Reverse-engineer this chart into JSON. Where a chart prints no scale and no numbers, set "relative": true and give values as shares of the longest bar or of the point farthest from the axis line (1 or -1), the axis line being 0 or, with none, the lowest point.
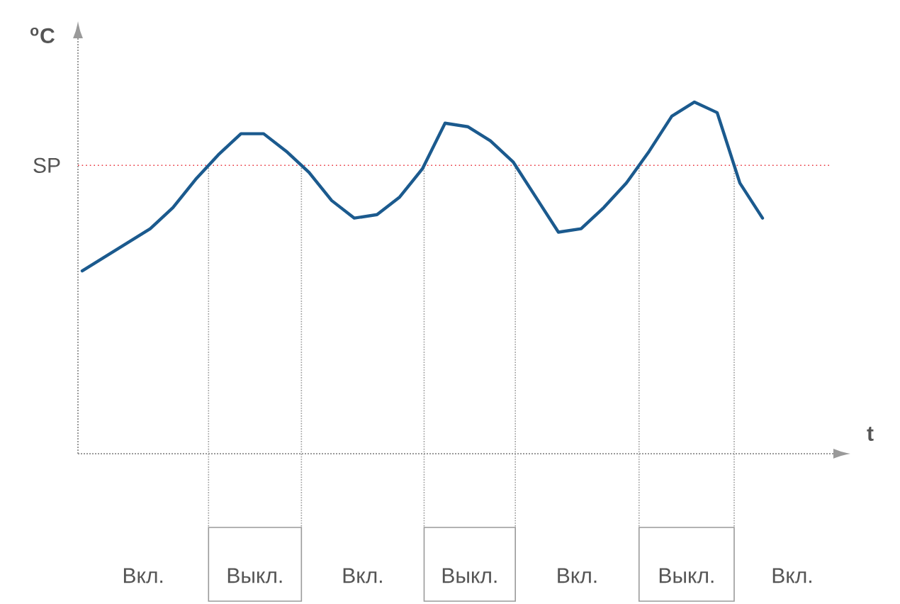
{
  "chart_data": {
    "type": "line",
    "relative": true,
    "xlabel": "t",
    "ylabel": "$^{o}$C",
    "categories": [
      null,
      null,
      null,
      null,
      null,
      null,
      null,
      null,
      null,
      null,
      null,
      null,
      null,
      null,
      null,
      null,
      null,
      null,
      null,
      null,
      null,
      null,
      null,
      null,
      null,
      null,
      null,
      null,
      null,
      null,
      null
    ],
    "values": [
      0.52,
      0.56,
      0.6,
      0.64,
      0.7,
      0.78,
      0.85,
      0.91,
      0.91,
      0.86,
      0.8,
      0.72,
      0.67,
      0.68,
      0.73,
      0.81,
      0.94,
      0.93,
      0.89,
      0.83,
      0.73,
      0.63,
      0.64,
      0.7,
      0.77,
      0.86,
      0.96,
      1.0,
      0.97,
      0.77,
      0.67
    ],
    "color": "#1b5a8e",
    "line_style": "solid",
    "marker": "none",
    "ref_lines": [
      {
        "axis": "y",
        "value": 0.82,
        "label": "SP",
        "color": "#e8333c",
        "line_style": "dotted"
      }
    ],
    "annotations": [
      "Вкл.",
      "Выкл.",
      "Вкл.",
      "Выкл.",
      "Вкл.",
      "Выкл.",
      "Вкл."
    ]
  }
}
